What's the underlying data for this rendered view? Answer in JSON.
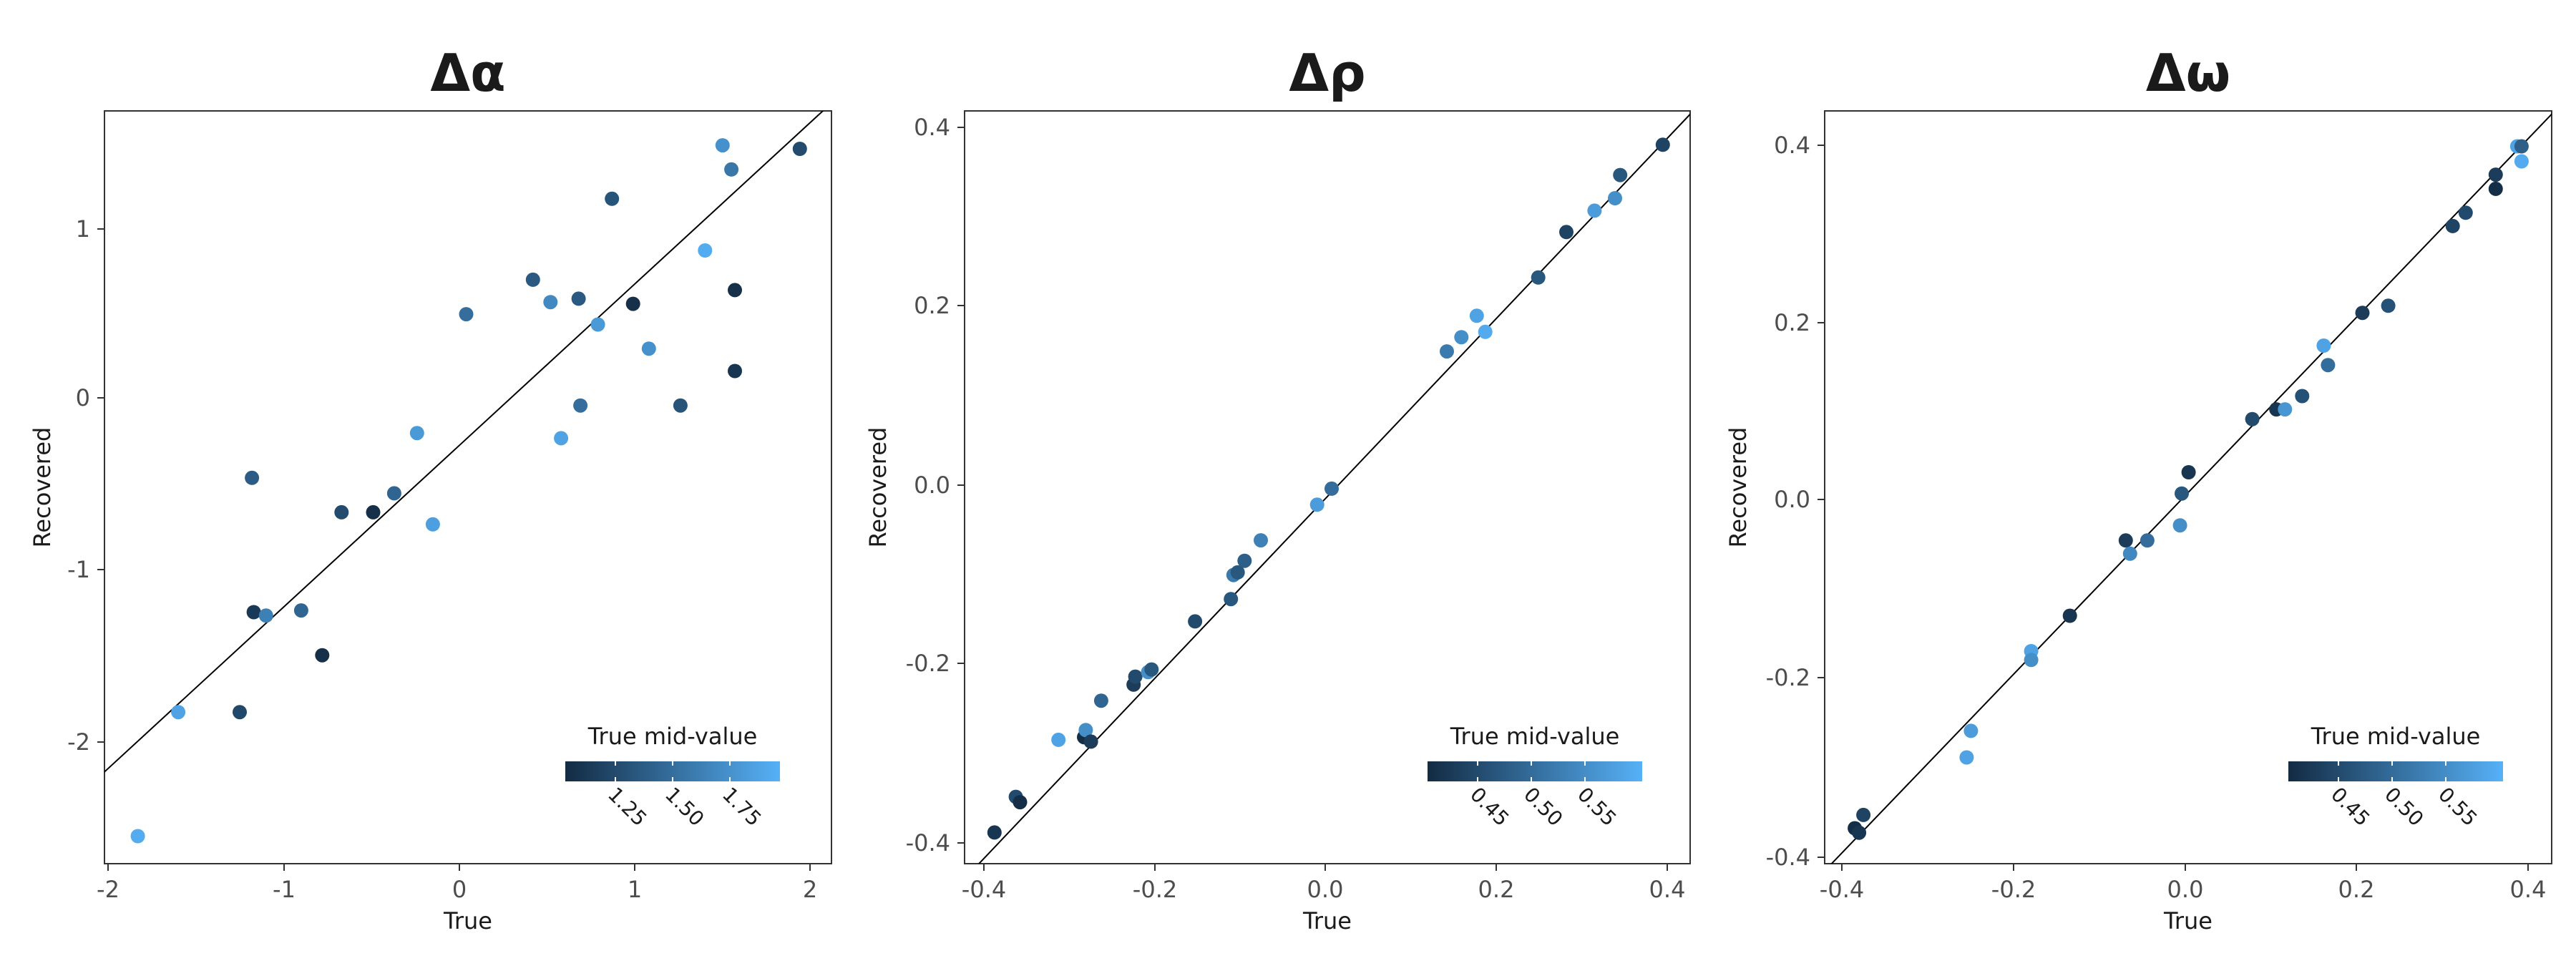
{
  "chart_data": [
    {
      "type": "scatter",
      "title": "Δα",
      "xlabel": "True",
      "ylabel": "Recovered",
      "xlim": [
        -2.02,
        2.12
      ],
      "ylim": [
        -2.68,
        1.69
      ],
      "xticks": [
        "-2",
        "-1",
        "0",
        "1",
        "2"
      ],
      "yticks": [
        "-2",
        "-1",
        "0",
        "1"
      ],
      "reference_line": "y = x",
      "grid": false,
      "legend": {
        "title": "True mid-value",
        "placement": "bottom-right",
        "range": [
          1.12,
          1.88
        ],
        "ticks": [
          "1.25",
          "1.50",
          "1.75"
        ],
        "colors": [
          "#132b43",
          "#56b1f7"
        ]
      },
      "points": [
        {
          "x": -1.83,
          "y": -2.52,
          "c": 1.85
        },
        {
          "x": -1.6,
          "y": -1.8,
          "c": 1.8
        },
        {
          "x": -1.25,
          "y": -1.8,
          "c": 1.28
        },
        {
          "x": -1.18,
          "y": -0.44,
          "c": 1.4
        },
        {
          "x": -1.17,
          "y": -1.22,
          "c": 1.2
        },
        {
          "x": -1.1,
          "y": -1.24,
          "c": 1.6
        },
        {
          "x": -0.9,
          "y": -1.21,
          "c": 1.45
        },
        {
          "x": -0.78,
          "y": -1.47,
          "c": 1.15
        },
        {
          "x": -0.67,
          "y": -0.64,
          "c": 1.3
        },
        {
          "x": -0.49,
          "y": -0.64,
          "c": 1.15
        },
        {
          "x": -0.37,
          "y": -0.53,
          "c": 1.45
        },
        {
          "x": -0.24,
          "y": -0.18,
          "c": 1.75
        },
        {
          "x": -0.15,
          "y": -0.71,
          "c": 1.78
        },
        {
          "x": 0.04,
          "y": 0.51,
          "c": 1.5
        },
        {
          "x": 0.42,
          "y": 0.71,
          "c": 1.38
        },
        {
          "x": 0.52,
          "y": 0.58,
          "c": 1.65
        },
        {
          "x": 0.58,
          "y": -0.21,
          "c": 1.8
        },
        {
          "x": 0.68,
          "y": 0.6,
          "c": 1.38
        },
        {
          "x": 0.69,
          "y": -0.02,
          "c": 1.5
        },
        {
          "x": 0.79,
          "y": 0.45,
          "c": 1.75
        },
        {
          "x": 0.87,
          "y": 1.18,
          "c": 1.35
        },
        {
          "x": 0.99,
          "y": 0.57,
          "c": 1.15
        },
        {
          "x": 1.08,
          "y": 0.31,
          "c": 1.7
        },
        {
          "x": 1.26,
          "y": -0.02,
          "c": 1.35
        },
        {
          "x": 1.4,
          "y": 0.88,
          "c": 1.85
        },
        {
          "x": 1.5,
          "y": 1.49,
          "c": 1.7
        },
        {
          "x": 1.55,
          "y": 1.35,
          "c": 1.55
        },
        {
          "x": 1.57,
          "y": 0.65,
          "c": 1.15
        },
        {
          "x": 1.57,
          "y": 0.18,
          "c": 1.18
        },
        {
          "x": 1.94,
          "y": 1.47,
          "c": 1.3
        }
      ]
    },
    {
      "type": "scatter",
      "title": "Δρ",
      "xlabel": "True",
      "ylabel": "Recovered",
      "xlim": [
        -0.42,
        0.43
      ],
      "ylim": [
        -0.425,
        0.42
      ],
      "xticks": [
        "-0.4",
        "-0.2",
        "0.0",
        "0.2",
        "0.4"
      ],
      "yticks": [
        "-0.4",
        "-0.2",
        "0.0",
        "0.2",
        "0.4"
      ],
      "reference_line": "y = x",
      "grid": false,
      "legend": {
        "title": "True mid-value",
        "placement": "bottom-right",
        "range": [
          0.405,
          0.6
        ],
        "ticks": [
          "0.45",
          "0.50",
          "0.55"
        ],
        "colors": [
          "#132b43",
          "#56b1f7"
        ]
      },
      "points": [
        {
          "x": -0.385,
          "y": -0.39,
          "c": 0.42
        },
        {
          "x": -0.36,
          "y": -0.35,
          "c": 0.45
        },
        {
          "x": -0.355,
          "y": -0.356,
          "c": 0.41
        },
        {
          "x": -0.31,
          "y": -0.286,
          "c": 0.58
        },
        {
          "x": -0.28,
          "y": -0.283,
          "c": 0.41
        },
        {
          "x": -0.278,
          "y": -0.275,
          "c": 0.55
        },
        {
          "x": -0.272,
          "y": -0.288,
          "c": 0.43
        },
        {
          "x": -0.26,
          "y": -0.242,
          "c": 0.49
        },
        {
          "x": -0.222,
          "y": -0.224,
          "c": 0.43
        },
        {
          "x": -0.22,
          "y": -0.215,
          "c": 0.45
        },
        {
          "x": -0.205,
          "y": -0.21,
          "c": 0.55
        },
        {
          "x": -0.201,
          "y": -0.207,
          "c": 0.47
        },
        {
          "x": -0.15,
          "y": -0.153,
          "c": 0.45
        },
        {
          "x": -0.108,
          "y": -0.128,
          "c": 0.47
        },
        {
          "x": -0.105,
          "y": -0.101,
          "c": 0.52
        },
        {
          "x": -0.1,
          "y": -0.098,
          "c": 0.47
        },
        {
          "x": -0.092,
          "y": -0.085,
          "c": 0.48
        },
        {
          "x": -0.073,
          "y": -0.062,
          "c": 0.53
        },
        {
          "x": -0.007,
          "y": -0.022,
          "c": 0.57
        },
        {
          "x": 0.01,
          "y": -0.004,
          "c": 0.5
        },
        {
          "x": 0.145,
          "y": 0.15,
          "c": 0.52
        },
        {
          "x": 0.162,
          "y": 0.166,
          "c": 0.55
        },
        {
          "x": 0.18,
          "y": 0.19,
          "c": 0.58
        },
        {
          "x": 0.19,
          "y": 0.172,
          "c": 0.59
        },
        {
          "x": 0.252,
          "y": 0.233,
          "c": 0.47
        },
        {
          "x": 0.285,
          "y": 0.284,
          "c": 0.44
        },
        {
          "x": 0.318,
          "y": 0.308,
          "c": 0.57
        },
        {
          "x": 0.342,
          "y": 0.322,
          "c": 0.55
        },
        {
          "x": 0.348,
          "y": 0.348,
          "c": 0.47
        },
        {
          "x": 0.398,
          "y": 0.382,
          "c": 0.44
        }
      ]
    },
    {
      "type": "scatter",
      "title": "Δω",
      "xlabel": "True",
      "ylabel": "Recovered",
      "xlim": [
        -0.415,
        0.43
      ],
      "ylim": [
        -0.41,
        0.44
      ],
      "xticks": [
        "-0.4",
        "-0.2",
        "0.0",
        "0.2",
        "0.4"
      ],
      "yticks": [
        "-0.4",
        "-0.2",
        "0.0",
        "0.2",
        "0.4"
      ],
      "reference_line": "y = x",
      "grid": false,
      "legend": {
        "title": "True mid-value",
        "placement": "bottom-right",
        "range": [
          0.405,
          0.6
        ],
        "ticks": [
          "0.45",
          "0.50",
          "0.55"
        ],
        "colors": [
          "#132b43",
          "#56b1f7"
        ]
      },
      "points": [
        {
          "x": -0.38,
          "y": -0.37,
          "c": 0.41
        },
        {
          "x": -0.375,
          "y": -0.375,
          "c": 0.42
        },
        {
          "x": -0.37,
          "y": -0.355,
          "c": 0.44
        },
        {
          "x": -0.25,
          "y": -0.29,
          "c": 0.58
        },
        {
          "x": -0.245,
          "y": -0.26,
          "c": 0.57
        },
        {
          "x": -0.175,
          "y": -0.17,
          "c": 0.58
        },
        {
          "x": -0.175,
          "y": -0.18,
          "c": 0.55
        },
        {
          "x": -0.13,
          "y": -0.13,
          "c": 0.42
        },
        {
          "x": -0.065,
          "y": -0.045,
          "c": 0.43
        },
        {
          "x": -0.06,
          "y": -0.06,
          "c": 0.54
        },
        {
          "x": -0.04,
          "y": -0.045,
          "c": 0.5
        },
        {
          "x": 0.0,
          "y": 0.008,
          "c": 0.47
        },
        {
          "x": -0.002,
          "y": -0.028,
          "c": 0.55
        },
        {
          "x": 0.008,
          "y": 0.032,
          "c": 0.42
        },
        {
          "x": 0.082,
          "y": 0.092,
          "c": 0.45
        },
        {
          "x": 0.11,
          "y": 0.103,
          "c": 0.42
        },
        {
          "x": 0.12,
          "y": 0.103,
          "c": 0.56
        },
        {
          "x": 0.14,
          "y": 0.118,
          "c": 0.46
        },
        {
          "x": 0.165,
          "y": 0.175,
          "c": 0.58
        },
        {
          "x": 0.17,
          "y": 0.153,
          "c": 0.5
        },
        {
          "x": 0.21,
          "y": 0.212,
          "c": 0.43
        },
        {
          "x": 0.24,
          "y": 0.22,
          "c": 0.46
        },
        {
          "x": 0.315,
          "y": 0.31,
          "c": 0.44
        },
        {
          "x": 0.33,
          "y": 0.325,
          "c": 0.45
        },
        {
          "x": 0.365,
          "y": 0.368,
          "c": 0.43
        },
        {
          "x": 0.365,
          "y": 0.352,
          "c": 0.41
        },
        {
          "x": 0.39,
          "y": 0.4,
          "c": 0.58
        },
        {
          "x": 0.395,
          "y": 0.4,
          "c": 0.48
        },
        {
          "x": 0.395,
          "y": 0.383,
          "c": 0.59
        }
      ]
    }
  ]
}
